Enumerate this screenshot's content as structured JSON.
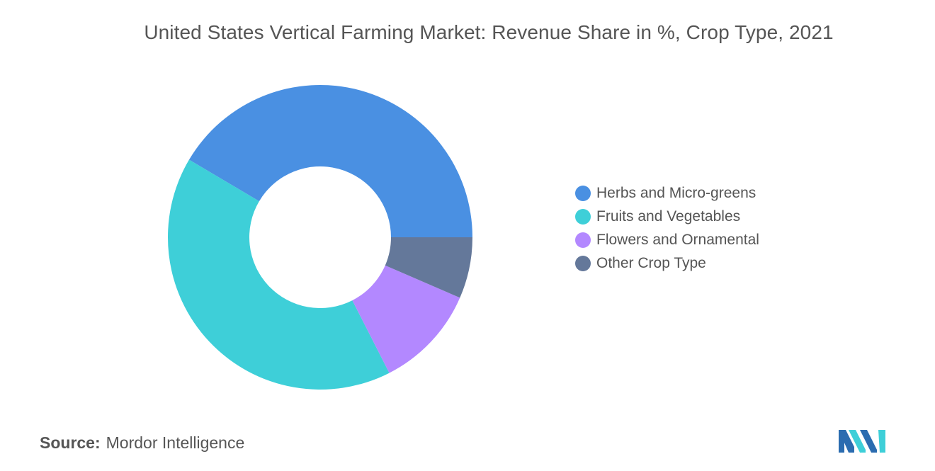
{
  "chart_data": {
    "type": "pie",
    "title": "United States Vertical Farming Market: Revenue Share in %, Crop Type, 2021",
    "categories": [
      "Herbs and Micro-greens",
      "Fruits and Vegetables",
      "Flowers and Ornamental",
      "Other Crop Type"
    ],
    "values": [
      41.5,
      41.0,
      11.0,
      6.5
    ],
    "colors": [
      "#4a90e2",
      "#3ecfd8",
      "#b388ff",
      "#64789a"
    ],
    "donut": true,
    "legend": "right"
  },
  "source": {
    "label": "Source:",
    "value": "Mordor Intelligence"
  },
  "logo": {
    "icon": "mordor-intelligence-logo"
  }
}
